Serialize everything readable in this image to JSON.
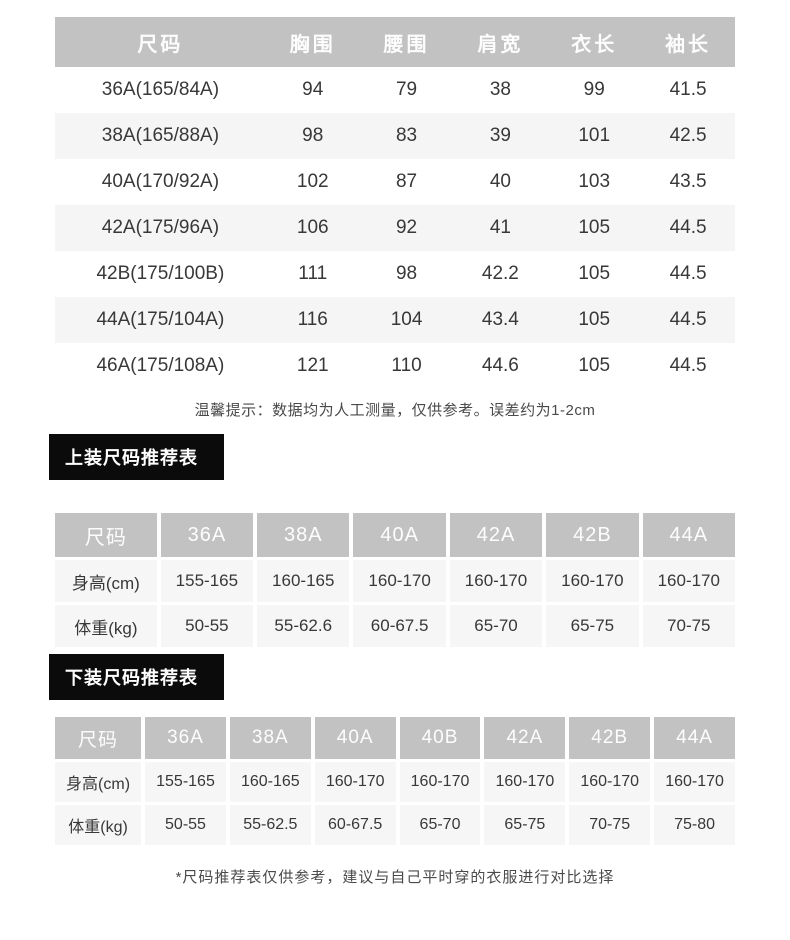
{
  "measure_table": {
    "headers": [
      "尺码",
      "胸围",
      "腰围",
      "肩宽",
      "衣长",
      "袖长"
    ],
    "rows": [
      [
        "36A(165/84A)",
        "94",
        "79",
        "38",
        "99",
        "41.5"
      ],
      [
        "38A(165/88A)",
        "98",
        "83",
        "39",
        "101",
        "42.5"
      ],
      [
        "40A(170/92A)",
        "102",
        "87",
        "40",
        "103",
        "43.5"
      ],
      [
        "42A(175/96A)",
        "106",
        "92",
        "41",
        "105",
        "44.5"
      ],
      [
        "42B(175/100B)",
        "111",
        "98",
        "42.2",
        "105",
        "44.5"
      ],
      [
        "44A(175/104A)",
        "116",
        "104",
        "43.4",
        "105",
        "44.5"
      ],
      [
        "46A(175/108A)",
        "121",
        "110",
        "44.6",
        "105",
        "44.5"
      ]
    ],
    "note": "温馨提示：数据均为人工测量，仅供参考。误差约为1-2cm"
  },
  "top_label": "上装尺码推荐表",
  "top_table": {
    "headers": [
      "尺码",
      "36A",
      "38A",
      "40A",
      "42A",
      "42B",
      "44A"
    ],
    "rows": [
      [
        "身高(cm)",
        "155-165",
        "160-165",
        "160-170",
        "160-170",
        "160-170",
        "160-170"
      ],
      [
        "体重(kg)",
        "50-55",
        "55-62.6",
        "60-67.5",
        "65-70",
        "65-75",
        "70-75"
      ]
    ]
  },
  "bottom_label": "下装尺码推荐表",
  "bottom_table": {
    "headers": [
      "尺码",
      "36A",
      "38A",
      "40A",
      "40B",
      "42A",
      "42B",
      "44A"
    ],
    "rows": [
      [
        "身高(cm)",
        "155-165",
        "160-165",
        "160-170",
        "160-170",
        "160-170",
        "160-170",
        "160-170"
      ],
      [
        "体重(kg)",
        "50-55",
        "55-62.5",
        "60-67.5",
        "65-70",
        "65-75",
        "70-75",
        "75-80"
      ]
    ]
  },
  "footer_note": "*尺码推荐表仅供参考，建议与自己平时穿的衣服进行对比选择",
  "colors": {
    "header_gray": "#c2c2c2",
    "alt_row_gray": "#f5f5f5",
    "cell_gray": "#f6f6f6",
    "label_black": "#0b0b0b",
    "text_dark": "#383838"
  }
}
